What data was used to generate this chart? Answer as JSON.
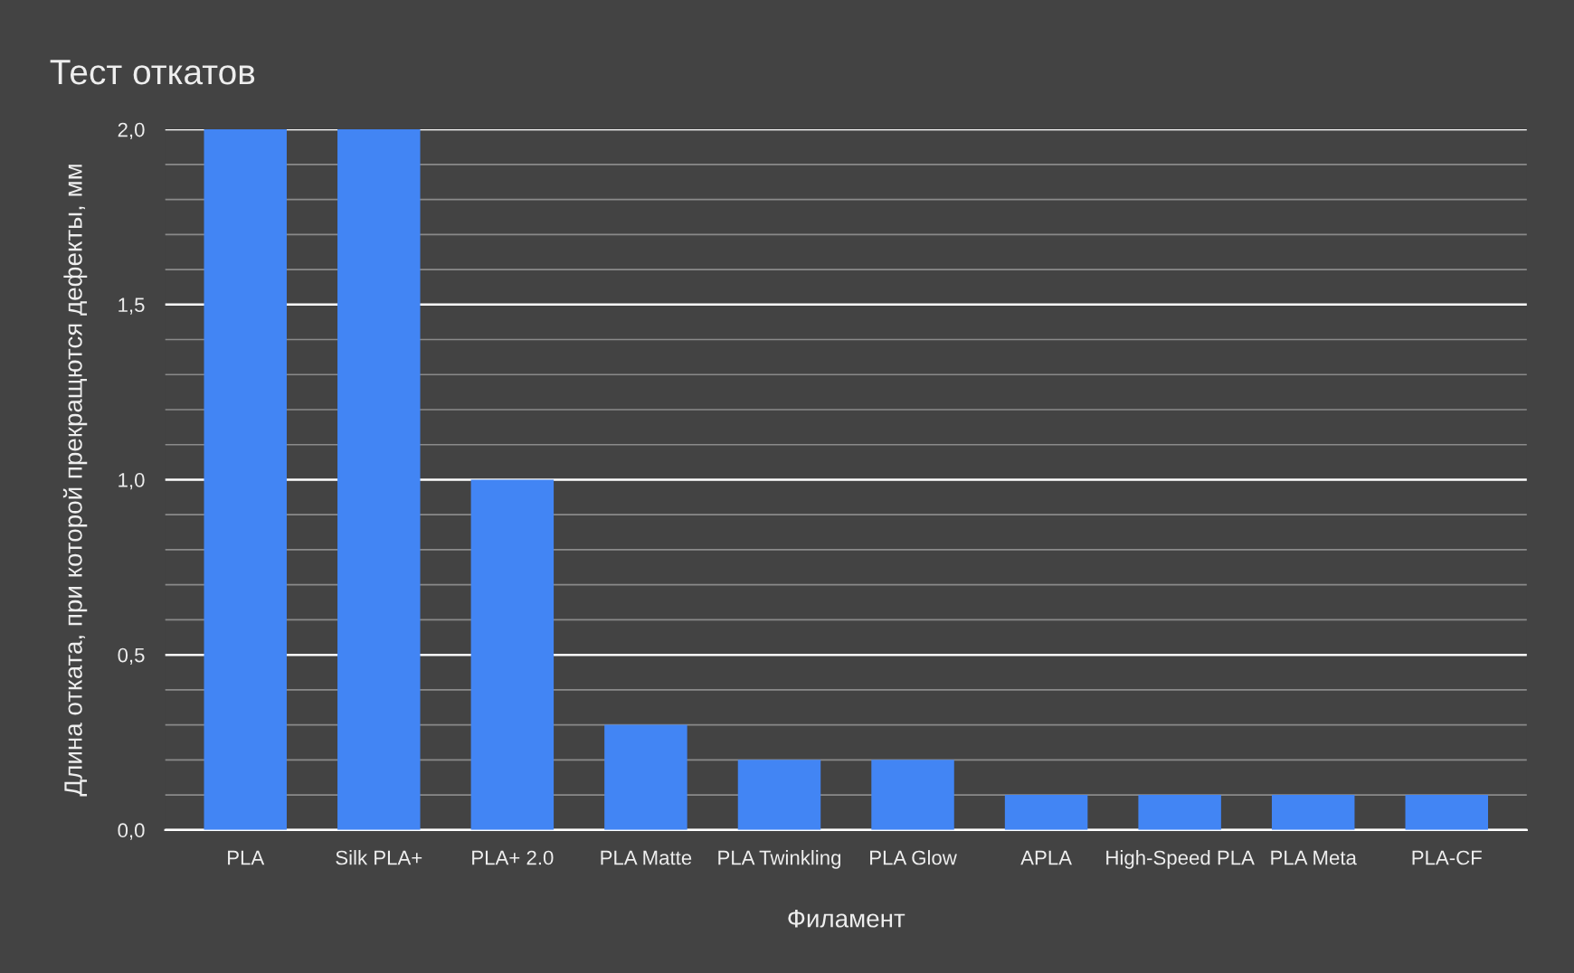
{
  "chart_data": {
    "type": "bar",
    "title": "Тест откатов",
    "xlabel": "Филамент",
    "ylabel": "Длина отката, при которой прекращются дефекты, мм",
    "categories": [
      "PLA",
      "Silk PLA+",
      "PLA+ 2.0",
      "PLA Matte",
      "PLA Twinkling",
      "PLA Glow",
      "APLA",
      "High-Speed PLA",
      "PLA Meta",
      "PLA-CF"
    ],
    "values": [
      2.0,
      2.0,
      1.0,
      0.3,
      0.2,
      0.2,
      0.1,
      0.1,
      0.1,
      0.1
    ],
    "color": "#4285f4",
    "ylim": [
      0,
      2.0
    ],
    "yticks": [
      {
        "value": 0,
        "label": "0,0"
      },
      {
        "value": 0.1,
        "label": null
      },
      {
        "value": 0.2,
        "label": null
      },
      {
        "value": 0.3,
        "label": null
      },
      {
        "value": 0.4,
        "label": null
      },
      {
        "value": 0.5,
        "label": "0,5"
      },
      {
        "value": 0.6,
        "label": null
      },
      {
        "value": 0.7,
        "label": null
      },
      {
        "value": 0.8,
        "label": null
      },
      {
        "value": 0.9,
        "label": null
      },
      {
        "value": 1.0,
        "label": "1,0"
      },
      {
        "value": 1.1,
        "label": null
      },
      {
        "value": 1.2,
        "label": null
      },
      {
        "value": 1.3,
        "label": null
      },
      {
        "value": 1.4,
        "label": null
      },
      {
        "value": 1.5,
        "label": "1,5"
      },
      {
        "value": 1.6,
        "label": null
      },
      {
        "value": 1.7,
        "label": null
      },
      {
        "value": 1.8,
        "label": null
      },
      {
        "value": 1.9,
        "label": null
      },
      {
        "value": 2.0,
        "label": "2,0"
      }
    ],
    "grid": "y",
    "legend": false
  }
}
